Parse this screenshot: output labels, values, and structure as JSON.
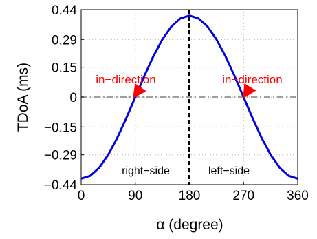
{
  "chart_data": {
    "type": "line",
    "title": "",
    "xlabel": "α (degree)",
    "ylabel": "TDoA (ms)",
    "xlim": [
      0,
      360
    ],
    "ylim": [
      -0.44,
      0.44
    ],
    "xticks": [
      0,
      90,
      180,
      270,
      360
    ],
    "xtick_labels": [
      "0",
      "90",
      "180",
      "270",
      "360"
    ],
    "yticks": [
      0.44,
      0.29,
      0.15,
      0,
      -0.15,
      -0.29,
      -0.44
    ],
    "ytick_labels": [
      "0.44",
      "0.29",
      "0.15",
      "0",
      "−0.15",
      "−0.29",
      "−0.44"
    ],
    "grid": true,
    "series": [
      {
        "x": [
          0,
          15,
          30,
          45,
          60,
          75,
          90,
          105,
          120,
          135,
          150,
          165,
          180,
          195,
          210,
          225,
          240,
          255,
          270,
          285,
          300,
          315,
          330,
          345,
          360
        ],
        "values": [
          -0.41,
          -0.396,
          -0.355,
          -0.29,
          -0.205,
          -0.106,
          0,
          0.106,
          0.205,
          0.29,
          0.355,
          0.396,
          0.41,
          0.396,
          0.355,
          0.29,
          0.205,
          0.106,
          0,
          -0.106,
          -0.205,
          -0.29,
          -0.355,
          -0.396,
          -0.41
        ],
        "color": "#0000dd",
        "style": "solid"
      }
    ],
    "reference_lines": [
      {
        "orientation": "horizontal",
        "value": 0,
        "color": "#7f7f7f",
        "style": "dash-dot"
      },
      {
        "orientation": "vertical",
        "value": 180,
        "color": "#000000",
        "style": "dashed"
      }
    ],
    "annotations": [
      {
        "text": "in−direction",
        "color": "#ff0000",
        "arrow_to": [
          90,
          0
        ]
      },
      {
        "text": "in−direction",
        "color": "#ff0000",
        "arrow_to": [
          270,
          0
        ]
      },
      {
        "text": "right−side",
        "color": "#000000"
      },
      {
        "text": "left−side",
        "color": "#000000"
      }
    ]
  }
}
